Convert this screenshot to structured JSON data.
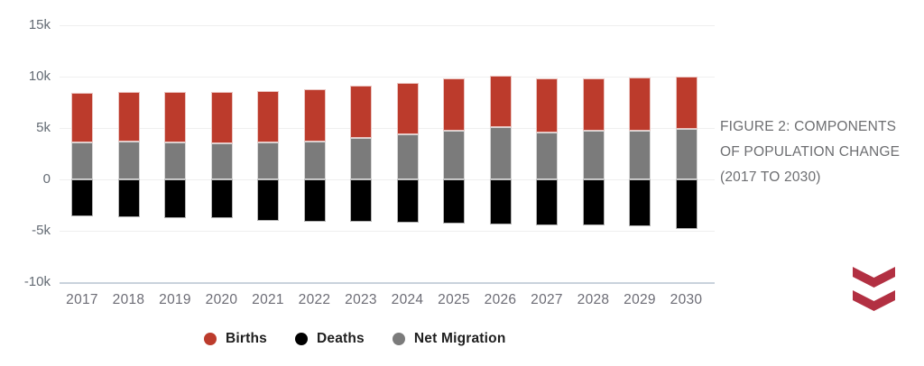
{
  "caption": {
    "line1": "FIGURE 2: COMPONENTS",
    "line2": "OF POPULATION CHANGE",
    "line3": "(2017 TO 2030)"
  },
  "icons": {
    "scroll_down": "double-chevron-down-icon"
  },
  "colors": {
    "births": "#bc3b2c",
    "deaths": "#000000",
    "net_migration": "#7b7b7b",
    "gridline": "#efefef",
    "baseline": "#c9d2dc",
    "y_axis_text": "#646b74",
    "x_axis_text": "#6c6c75",
    "legend_text": "#1e1e1e",
    "caption_text": "#6d6e71",
    "chevron": "#b23042",
    "background": "#ffffff"
  },
  "chart_data": {
    "type": "bar",
    "stacked": true,
    "title": "",
    "xlabel": "",
    "ylabel": "",
    "unit": "thousands of people (k)",
    "grid": true,
    "legend_position": "bottom",
    "categories": [
      2017,
      2018,
      2019,
      2020,
      2021,
      2022,
      2023,
      2024,
      2025,
      2026,
      2027,
      2028,
      2029,
      2030
    ],
    "series": [
      {
        "name": "Births",
        "color": "#bc3b2c",
        "values": [
          4.8,
          4.8,
          4.9,
          5.0,
          5.0,
          5.1,
          5.1,
          5.0,
          5.1,
          5.0,
          5.2,
          5.1,
          5.2,
          5.1
        ]
      },
      {
        "name": "Deaths",
        "color": "#000000",
        "values": [
          -3.6,
          -3.7,
          -3.8,
          -3.8,
          -4.0,
          -4.1,
          -4.1,
          -4.2,
          -4.3,
          -4.4,
          -4.5,
          -4.5,
          -4.6,
          -4.8
        ]
      },
      {
        "name": "Net Migration",
        "color": "#7b7b7b",
        "values": [
          3.6,
          3.7,
          3.6,
          3.5,
          3.6,
          3.7,
          4.0,
          4.4,
          4.7,
          5.1,
          4.6,
          4.7,
          4.7,
          4.9
        ]
      }
    ],
    "y_ticks": [
      {
        "value": 15,
        "label": "15k"
      },
      {
        "value": 10,
        "label": "10k"
      },
      {
        "value": 5,
        "label": "5k"
      },
      {
        "value": 0,
        "label": "0"
      },
      {
        "value": -5,
        "label": "-5k"
      },
      {
        "value": -10,
        "label": "-10k"
      }
    ],
    "ylim": [
      -10,
      15
    ]
  }
}
